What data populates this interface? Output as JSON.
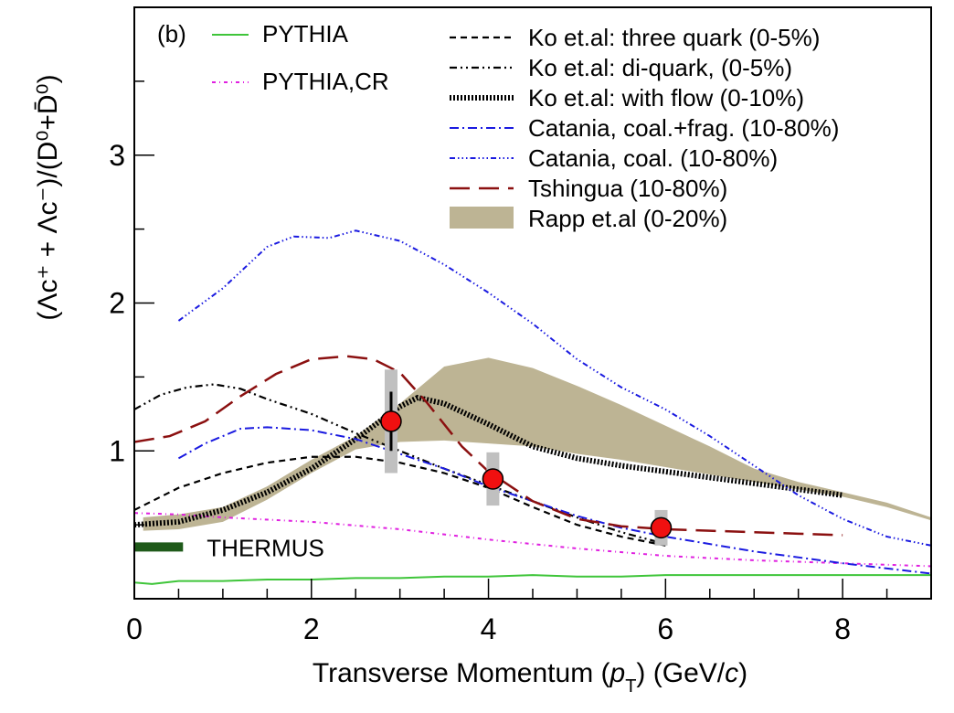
{
  "chart_data": {
    "type": "line",
    "panel_label": "(b)",
    "xlabel_prefix": "Transverse Momentum (",
    "xlabel_var": "p",
    "xlabel_sub": "T",
    "xlabel_unit_prefix": ") (GeV/",
    "xlabel_unit_var": "c",
    "xlabel_suffix": ")",
    "ylabel": "(Λc⁺ + Λc⁻)/(D⁰+D̄⁰)",
    "xlim": [
      0,
      9
    ],
    "ylim": [
      0,
      4
    ],
    "xticks": [
      0,
      2,
      4,
      6,
      8
    ],
    "xtick_labels": [
      "0",
      "2",
      "4",
      "6",
      "8"
    ],
    "yticks": [
      1,
      2,
      3
    ],
    "ytick_labels": [
      "1",
      "2",
      "3"
    ],
    "thermus": {
      "label": "THERMUS",
      "color": "#1f5a1a",
      "x": [
        0.0,
        0.55
      ],
      "y": 0.35
    },
    "series": [
      {
        "name": "PYTHIA",
        "color": "#3fc53a",
        "dash": "none",
        "width": 2,
        "x": [
          0.0,
          0.2,
          0.5,
          1.0,
          1.5,
          2.0,
          2.5,
          3.0,
          3.5,
          4.0,
          4.5,
          5.0,
          5.5,
          6.0,
          6.5,
          7.0,
          7.5,
          8.0,
          8.5,
          9.0
        ],
        "y": [
          0.11,
          0.1,
          0.12,
          0.12,
          0.13,
          0.13,
          0.14,
          0.14,
          0.15,
          0.15,
          0.16,
          0.15,
          0.15,
          0.16,
          0.16,
          0.16,
          0.16,
          0.16,
          0.16,
          0.16
        ]
      },
      {
        "name": "PYTHIA,CR",
        "color": "#e020e0",
        "dash": "4,4,1,4",
        "width": 2,
        "x": [
          0.0,
          0.5,
          1.0,
          2.0,
          3.0,
          4.0,
          5.0,
          6.0,
          7.0,
          8.0,
          9.0
        ],
        "y": [
          0.58,
          0.57,
          0.55,
          0.52,
          0.47,
          0.4,
          0.34,
          0.29,
          0.26,
          0.24,
          0.22
        ]
      },
      {
        "name": "Ko et.al: three quark (0-5%)",
        "color": "#000000",
        "dash": "7,5",
        "width": 2.2,
        "x": [
          0.0,
          0.5,
          1.0,
          1.5,
          2.0,
          2.5,
          3.0,
          3.5,
          4.0,
          4.5,
          5.0,
          5.5,
          6.0
        ],
        "y": [
          0.6,
          0.75,
          0.85,
          0.92,
          0.96,
          0.96,
          0.92,
          0.85,
          0.75,
          0.62,
          0.5,
          0.42,
          0.36
        ]
      },
      {
        "name": "Ko et.al: di-quark, (0-5%)",
        "color": "#000000",
        "dash": "8,4,2,4,2,4",
        "width": 2.2,
        "x": [
          0.0,
          0.3,
          0.6,
          0.9,
          1.2,
          1.5,
          2.0,
          2.5,
          3.0,
          3.5,
          4.0,
          4.5,
          5.0,
          5.5,
          6.0
        ],
        "y": [
          1.28,
          1.38,
          1.43,
          1.45,
          1.42,
          1.35,
          1.25,
          1.12,
          1.0,
          0.88,
          0.77,
          0.66,
          0.55,
          0.45,
          0.37
        ]
      },
      {
        "name": "Ko et.al: with flow (0-10%)",
        "color": "#000000",
        "dash": "2,2",
        "width": 6,
        "x": [
          0.0,
          0.5,
          1.0,
          1.5,
          2.0,
          2.5,
          3.0,
          3.2,
          3.5,
          4.0,
          4.5,
          5.0,
          5.5,
          6.0,
          6.5,
          7.0,
          7.5,
          8.0
        ],
        "y": [
          0.5,
          0.52,
          0.6,
          0.72,
          0.88,
          1.08,
          1.3,
          1.36,
          1.32,
          1.18,
          1.03,
          0.95,
          0.9,
          0.86,
          0.82,
          0.78,
          0.74,
          0.7
        ]
      },
      {
        "name": "Catania, coal.+frag. (10-80%)",
        "color": "#1a1ae0",
        "dash": "10,4,2,4",
        "width": 2,
        "x": [
          0.5,
          0.8,
          1.2,
          1.5,
          2.0,
          2.5,
          3.0,
          3.5,
          4.0,
          4.5,
          5.0,
          5.5,
          6.0,
          6.5,
          7.0,
          8.0,
          9.0
        ],
        "y": [
          0.95,
          1.05,
          1.15,
          1.16,
          1.14,
          1.08,
          0.98,
          0.88,
          0.76,
          0.66,
          0.56,
          0.48,
          0.42,
          0.37,
          0.32,
          0.24,
          0.17
        ]
      },
      {
        "name": "Catania, coal. (10-80%)",
        "color": "#1a1ae0",
        "dash": "6,3,1.5,3,1.5,3,1.5,3",
        "width": 2,
        "x": [
          0.5,
          1.0,
          1.5,
          1.8,
          2.2,
          2.5,
          3.0,
          3.5,
          4.0,
          4.5,
          5.0,
          5.5,
          6.0,
          6.5,
          7.0,
          7.5,
          8.0,
          8.5,
          9.0
        ],
        "y": [
          1.88,
          2.1,
          2.38,
          2.45,
          2.44,
          2.49,
          2.42,
          2.26,
          2.07,
          1.86,
          1.62,
          1.43,
          1.28,
          1.1,
          0.9,
          0.7,
          0.54,
          0.42,
          0.36
        ]
      },
      {
        "name": "Tshingua (10-80%)",
        "color": "#8b1010",
        "dash": "22,10",
        "width": 2.5,
        "x": [
          0.0,
          0.4,
          0.8,
          1.2,
          1.6,
          2.0,
          2.4,
          2.7,
          3.0,
          3.3,
          3.7,
          4.0,
          4.5,
          5.0,
          5.5,
          6.0,
          6.5,
          7.0,
          7.5,
          8.0
        ],
        "y": [
          1.06,
          1.1,
          1.2,
          1.37,
          1.52,
          1.62,
          1.64,
          1.62,
          1.53,
          1.33,
          1.03,
          0.86,
          0.66,
          0.54,
          0.49,
          0.47,
          0.46,
          0.45,
          0.44,
          0.43
        ]
      }
    ],
    "band": {
      "name": "Rapp et.al (0-20%)",
      "color": "#bdb494",
      "x": [
        0.1,
        0.5,
        1.0,
        1.5,
        2.0,
        2.5,
        3.0,
        3.5,
        4.0,
        4.5,
        5.0,
        5.5,
        6.0,
        6.5,
        7.0,
        7.5,
        8.0,
        8.5,
        9.0
      ],
      "upper": [
        0.55,
        0.57,
        0.62,
        0.76,
        0.94,
        1.1,
        1.32,
        1.57,
        1.63,
        1.56,
        1.44,
        1.31,
        1.17,
        1.03,
        0.88,
        0.79,
        0.72,
        0.65,
        0.55
      ],
      "lower": [
        0.46,
        0.47,
        0.52,
        0.67,
        0.85,
        1.01,
        1.06,
        1.07,
        1.05,
        1.03,
        0.98,
        0.94,
        0.89,
        0.84,
        0.79,
        0.74,
        0.69,
        0.62,
        0.53
      ]
    },
    "data_points": [
      {
        "x": 2.9,
        "y": 1.2,
        "stat_err": 0.2,
        "sys_err": 0.35
      },
      {
        "x": 4.05,
        "y": 0.81,
        "stat_err": 0.06,
        "sys_err": 0.18
      },
      {
        "x": 5.95,
        "y": 0.48,
        "stat_err": 0.03,
        "sys_err": 0.12
      }
    ],
    "legend": {
      "left": [
        {
          "label": "PYTHIA",
          "series": 0
        },
        {
          "label": "PYTHIA,CR",
          "series": 1
        }
      ],
      "right": [
        {
          "label": "Ko et.al: three quark (0-5%)",
          "series": 2
        },
        {
          "label": "Ko et.al: di-quark, (0-5%)",
          "series": 3
        },
        {
          "label": "Ko et.al: with flow (0-10%)",
          "series": 4
        },
        {
          "label": "Catania, coal.+frag. (10-80%)",
          "series": 5
        },
        {
          "label": "Catania, coal. (10-80%)",
          "series": 6
        },
        {
          "label": "Tshingua (10-80%)",
          "series": 7
        },
        {
          "label": "Rapp et.al (0-20%)",
          "band": true
        }
      ]
    }
  }
}
